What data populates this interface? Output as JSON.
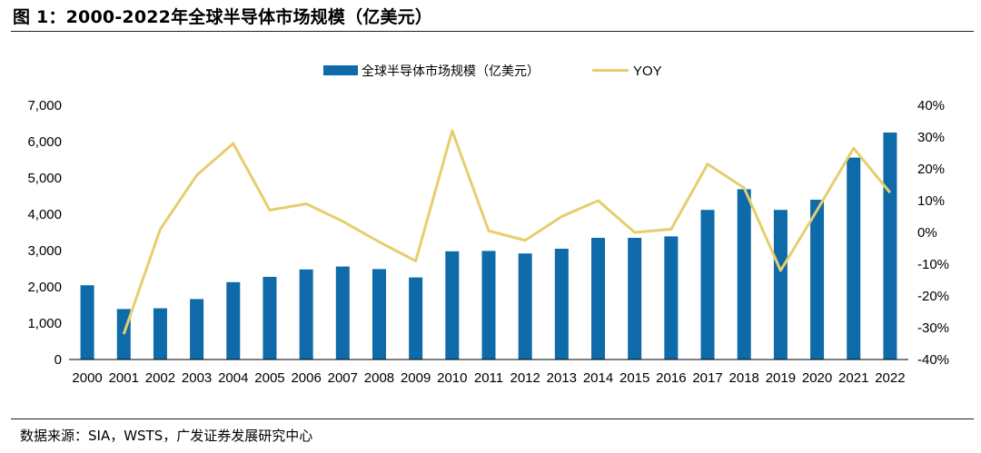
{
  "title": "图 1：2000-2022年全球半导体市场规模（亿美元）",
  "source": "数据来源：SIA，WSTS，广发证券发展研究中心",
  "colors": {
    "bar": "#0E6AA8",
    "line": "#E6CE6E"
  },
  "chart_data": {
    "type": "bar",
    "categories": [
      "2000",
      "2001",
      "2002",
      "2003",
      "2004",
      "2005",
      "2006",
      "2007",
      "2008",
      "2009",
      "2010",
      "2011",
      "2012",
      "2013",
      "2014",
      "2015",
      "2016",
      "2017",
      "2018",
      "2019",
      "2020",
      "2021",
      "2022"
    ],
    "series": [
      {
        "name": "全球半导体市场规模（亿美元）",
        "type": "bar",
        "axis": "left",
        "values": [
          2044,
          1390,
          1410,
          1664,
          2130,
          2275,
          2480,
          2560,
          2490,
          2260,
          2980,
          2990,
          2920,
          3050,
          3350,
          3350,
          3390,
          4120,
          4690,
          4120,
          4400,
          5560,
          6250
        ]
      },
      {
        "name": "YOY",
        "type": "line",
        "axis": "right",
        "values": [
          null,
          -32,
          1,
          18,
          28,
          7,
          9,
          3.5,
          -3,
          -9,
          32,
          0.5,
          -2.5,
          5,
          10,
          0,
          1,
          21.5,
          14,
          -12,
          7,
          26.5,
          12.5
        ]
      }
    ],
    "y_left": {
      "min": 0,
      "max": 7000,
      "step": 1000,
      "tick_labels": [
        "0",
        "1,000",
        "2,000",
        "3,000",
        "4,000",
        "5,000",
        "6,000",
        "7,000"
      ]
    },
    "y_right": {
      "min": -40,
      "max": 40,
      "step": 10,
      "tick_labels": [
        "-40%",
        "-30%",
        "-20%",
        "-10%",
        "0%",
        "10%",
        "20%",
        "30%",
        "40%"
      ]
    },
    "xlabel": "",
    "ylabel": "",
    "grid": false,
    "legend": {
      "position": "top-center",
      "labels": [
        "全球半导体市场规模（亿美元）",
        "YOY"
      ]
    }
  }
}
